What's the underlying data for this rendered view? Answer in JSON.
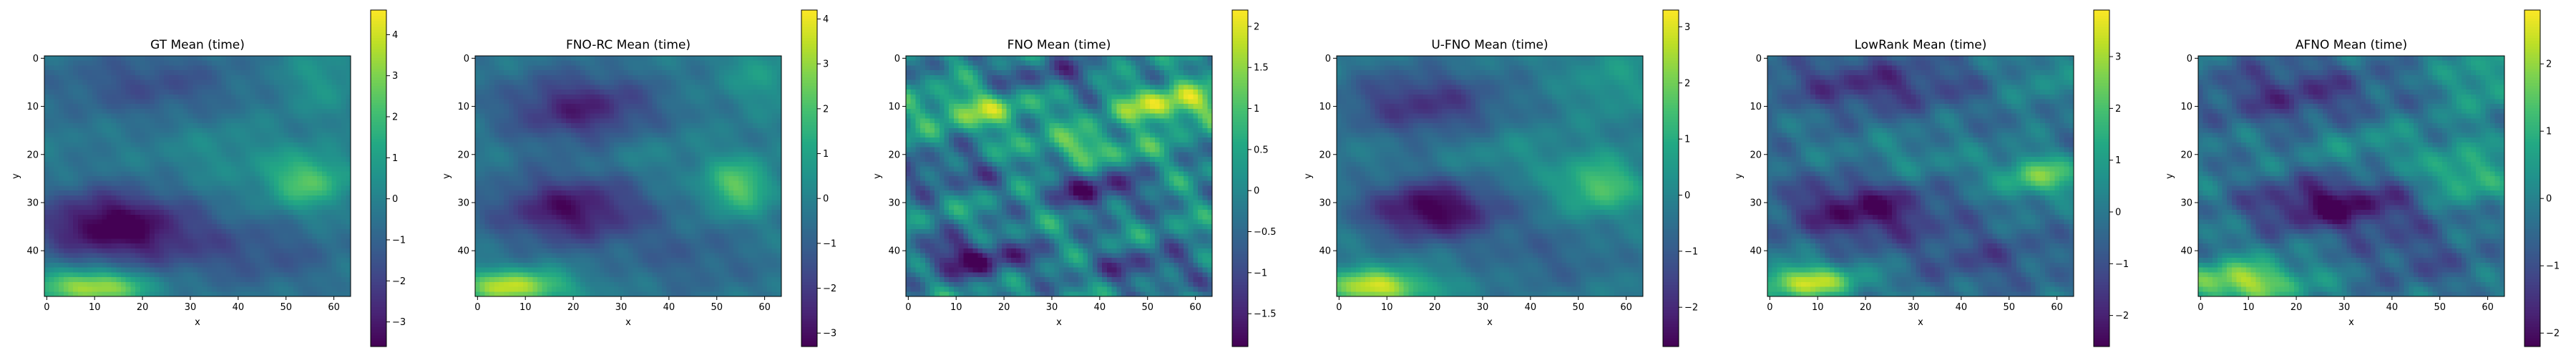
{
  "chart_data": [
    {
      "type": "heatmap",
      "title": "GT Mean (time)",
      "xlabel": "x",
      "ylabel": "y",
      "x_ticks": [
        0,
        10,
        20,
        30,
        40,
        50,
        60
      ],
      "y_ticks": [
        0,
        10,
        20,
        30,
        40
      ],
      "x_range": [
        0,
        64
      ],
      "y_range": [
        0,
        50
      ],
      "colorbar": {
        "range": [
          -3.6,
          4.6
        ],
        "ticks": [
          -3,
          -2,
          -1,
          0,
          1,
          2,
          3,
          4
        ]
      },
      "colormap": "viridis",
      "blobs": [
        {
          "x": 14,
          "y": 35,
          "sx": 11,
          "sy": 5,
          "v": -3.4
        },
        {
          "x": 22,
          "y": 6,
          "sx": 14,
          "sy": 5,
          "v": -1.3
        },
        {
          "x": 32,
          "y": 40,
          "sx": 14,
          "sy": 5,
          "v": -1.0
        },
        {
          "x": 55,
          "y": 26,
          "sx": 6,
          "sy": 4,
          "v": 2.7
        },
        {
          "x": 10,
          "y": 48,
          "sx": 8,
          "sy": 2.5,
          "v": 4.2
        },
        {
          "x": 58,
          "y": 5,
          "sx": 6,
          "sy": 5,
          "v": 1.0
        },
        {
          "x": 38,
          "y": 20,
          "sx": 9,
          "sy": 5,
          "v": 0.6
        },
        {
          "x": 50,
          "y": 42,
          "sx": 10,
          "sy": 5,
          "v": -0.6
        }
      ],
      "texture": 0.3,
      "base": -0.3
    },
    {
      "type": "heatmap",
      "title": "FNO-RC Mean (time)",
      "xlabel": "x",
      "ylabel": "y",
      "x_ticks": [
        0,
        10,
        20,
        30,
        40,
        50,
        60
      ],
      "y_ticks": [
        0,
        10,
        20,
        30,
        40
      ],
      "x_range": [
        0,
        64
      ],
      "y_range": [
        0,
        50
      ],
      "colorbar": {
        "range": [
          -3.3,
          4.2
        ],
        "ticks": [
          -3,
          -2,
          -1,
          0,
          1,
          2,
          3,
          4
        ]
      },
      "colormap": "viridis",
      "blobs": [
        {
          "x": 20,
          "y": 32,
          "sx": 11,
          "sy": 5,
          "v": -2.7
        },
        {
          "x": 22,
          "y": 11,
          "sx": 11,
          "sy": 5,
          "v": -2.3
        },
        {
          "x": 55,
          "y": 27,
          "sx": 5,
          "sy": 4,
          "v": 2.6
        },
        {
          "x": 8,
          "y": 48,
          "sx": 8,
          "sy": 2.5,
          "v": 3.8
        },
        {
          "x": 60,
          "y": 4,
          "sx": 6,
          "sy": 5,
          "v": 1.0
        },
        {
          "x": 35,
          "y": 20,
          "sx": 9,
          "sy": 4,
          "v": 0.4
        },
        {
          "x": 45,
          "y": 42,
          "sx": 10,
          "sy": 5,
          "v": -0.7
        }
      ],
      "texture": 0.3,
      "base": -0.3
    },
    {
      "type": "heatmap",
      "title": "FNO Mean (time)",
      "xlabel": "x",
      "ylabel": "y",
      "x_ticks": [
        0,
        10,
        20,
        30,
        40,
        50,
        60
      ],
      "y_ticks": [
        0,
        10,
        20,
        30,
        40
      ],
      "x_range": [
        0,
        64
      ],
      "y_range": [
        0,
        50
      ],
      "colorbar": {
        "range": [
          -1.9,
          2.2
        ],
        "ticks": [
          -1.5,
          -1.0,
          -0.5,
          0.0,
          0.5,
          1.0,
          1.5,
          2.0
        ]
      },
      "colormap": "viridis",
      "blobs": [
        {
          "x": 55,
          "y": 10,
          "sx": 8,
          "sy": 3,
          "v": 1.8
        },
        {
          "x": 15,
          "y": 11,
          "sx": 9,
          "sy": 3,
          "v": 1.3
        },
        {
          "x": 38,
          "y": 19,
          "sx": 8,
          "sy": 2.5,
          "v": 1.1
        },
        {
          "x": 40,
          "y": 28,
          "sx": 7,
          "sy": 3,
          "v": -1.5
        },
        {
          "x": 14,
          "y": 42,
          "sx": 9,
          "sy": 3,
          "v": -1.7
        },
        {
          "x": 50,
          "y": 44,
          "sx": 8,
          "sy": 3,
          "v": -1.0
        },
        {
          "x": 8,
          "y": 24,
          "sx": 8,
          "sy": 3,
          "v": -0.9
        },
        {
          "x": 30,
          "y": 4,
          "sx": 10,
          "sy": 3,
          "v": -0.8
        }
      ],
      "texture": 0.7,
      "base": 0.0
    },
    {
      "type": "heatmap",
      "title": "U-FNO Mean (time)",
      "xlabel": "x",
      "ylabel": "y",
      "x_ticks": [
        0,
        10,
        20,
        30,
        40,
        50,
        60
      ],
      "y_ticks": [
        0,
        10,
        20,
        30,
        40
      ],
      "x_range": [
        0,
        64
      ],
      "y_range": [
        0,
        50
      ],
      "colorbar": {
        "range": [
          -2.7,
          3.3
        ],
        "ticks": [
          -2,
          -1,
          0,
          1,
          2,
          3
        ]
      },
      "colormap": "viridis",
      "blobs": [
        {
          "x": 20,
          "y": 32,
          "sx": 10,
          "sy": 4.5,
          "v": -2.6
        },
        {
          "x": 18,
          "y": 10,
          "sx": 12,
          "sy": 5,
          "v": -1.6
        },
        {
          "x": 55,
          "y": 27,
          "sx": 6,
          "sy": 4,
          "v": 1.9
        },
        {
          "x": 8,
          "y": 48,
          "sx": 8,
          "sy": 2.5,
          "v": 3.1
        },
        {
          "x": 58,
          "y": 5,
          "sx": 6,
          "sy": 5,
          "v": 0.7
        },
        {
          "x": 36,
          "y": 20,
          "sx": 9,
          "sy": 4,
          "v": 0.4
        },
        {
          "x": 45,
          "y": 42,
          "sx": 10,
          "sy": 5,
          "v": -0.6
        }
      ],
      "texture": 0.25,
      "base": -0.2
    },
    {
      "type": "heatmap",
      "title": "LowRank Mean (time)",
      "xlabel": "x",
      "ylabel": "y",
      "x_ticks": [
        0,
        10,
        20,
        30,
        40,
        50,
        60
      ],
      "y_ticks": [
        0,
        10,
        20,
        30,
        40
      ],
      "x_range": [
        0,
        64
      ],
      "y_range": [
        0,
        50
      ],
      "colorbar": {
        "range": [
          -2.6,
          3.9
        ],
        "ticks": [
          -2,
          -1,
          0,
          1,
          2,
          3
        ]
      },
      "colormap": "viridis",
      "blobs": [
        {
          "x": 20,
          "y": 32,
          "sx": 11,
          "sy": 4.5,
          "v": -2.3
        },
        {
          "x": 22,
          "y": 6,
          "sx": 14,
          "sy": 4,
          "v": -1.5
        },
        {
          "x": 57,
          "y": 25,
          "sx": 6,
          "sy": 3,
          "v": 2.6
        },
        {
          "x": 8,
          "y": 47,
          "sx": 8,
          "sy": 2.5,
          "v": 3.5
        },
        {
          "x": 58,
          "y": 5,
          "sx": 6,
          "sy": 4,
          "v": 0.8
        },
        {
          "x": 30,
          "y": 22,
          "sx": 10,
          "sy": 4,
          "v": 0.6
        },
        {
          "x": 45,
          "y": 42,
          "sx": 10,
          "sy": 4,
          "v": -0.9
        }
      ],
      "texture": 0.5,
      "base": -0.2
    },
    {
      "type": "heatmap",
      "title": "AFNO Mean (time)",
      "xlabel": "x",
      "ylabel": "y",
      "x_ticks": [
        0,
        10,
        20,
        30,
        40,
        50,
        60
      ],
      "y_ticks": [
        0,
        10,
        20,
        30,
        40
      ],
      "x_range": [
        0,
        64
      ],
      "y_range": [
        0,
        50
      ],
      "colorbar": {
        "range": [
          -2.2,
          2.8
        ],
        "ticks": [
          -2,
          -1,
          0,
          1,
          2
        ]
      },
      "colormap": "viridis",
      "blobs": [
        {
          "x": 28,
          "y": 31,
          "sx": 12,
          "sy": 4,
          "v": -2.0
        },
        {
          "x": 20,
          "y": 8,
          "sx": 14,
          "sy": 5,
          "v": -1.2
        },
        {
          "x": 56,
          "y": 25,
          "sx": 6,
          "sy": 4,
          "v": 1.4
        },
        {
          "x": 9,
          "y": 47,
          "sx": 9,
          "sy": 3,
          "v": 2.4
        },
        {
          "x": 60,
          "y": 5,
          "sx": 6,
          "sy": 5,
          "v": 0.9
        },
        {
          "x": 36,
          "y": 18,
          "sx": 10,
          "sy": 4,
          "v": 0.5
        },
        {
          "x": 46,
          "y": 42,
          "sx": 10,
          "sy": 5,
          "v": -0.7
        }
      ],
      "texture": 0.45,
      "base": -0.2
    }
  ]
}
